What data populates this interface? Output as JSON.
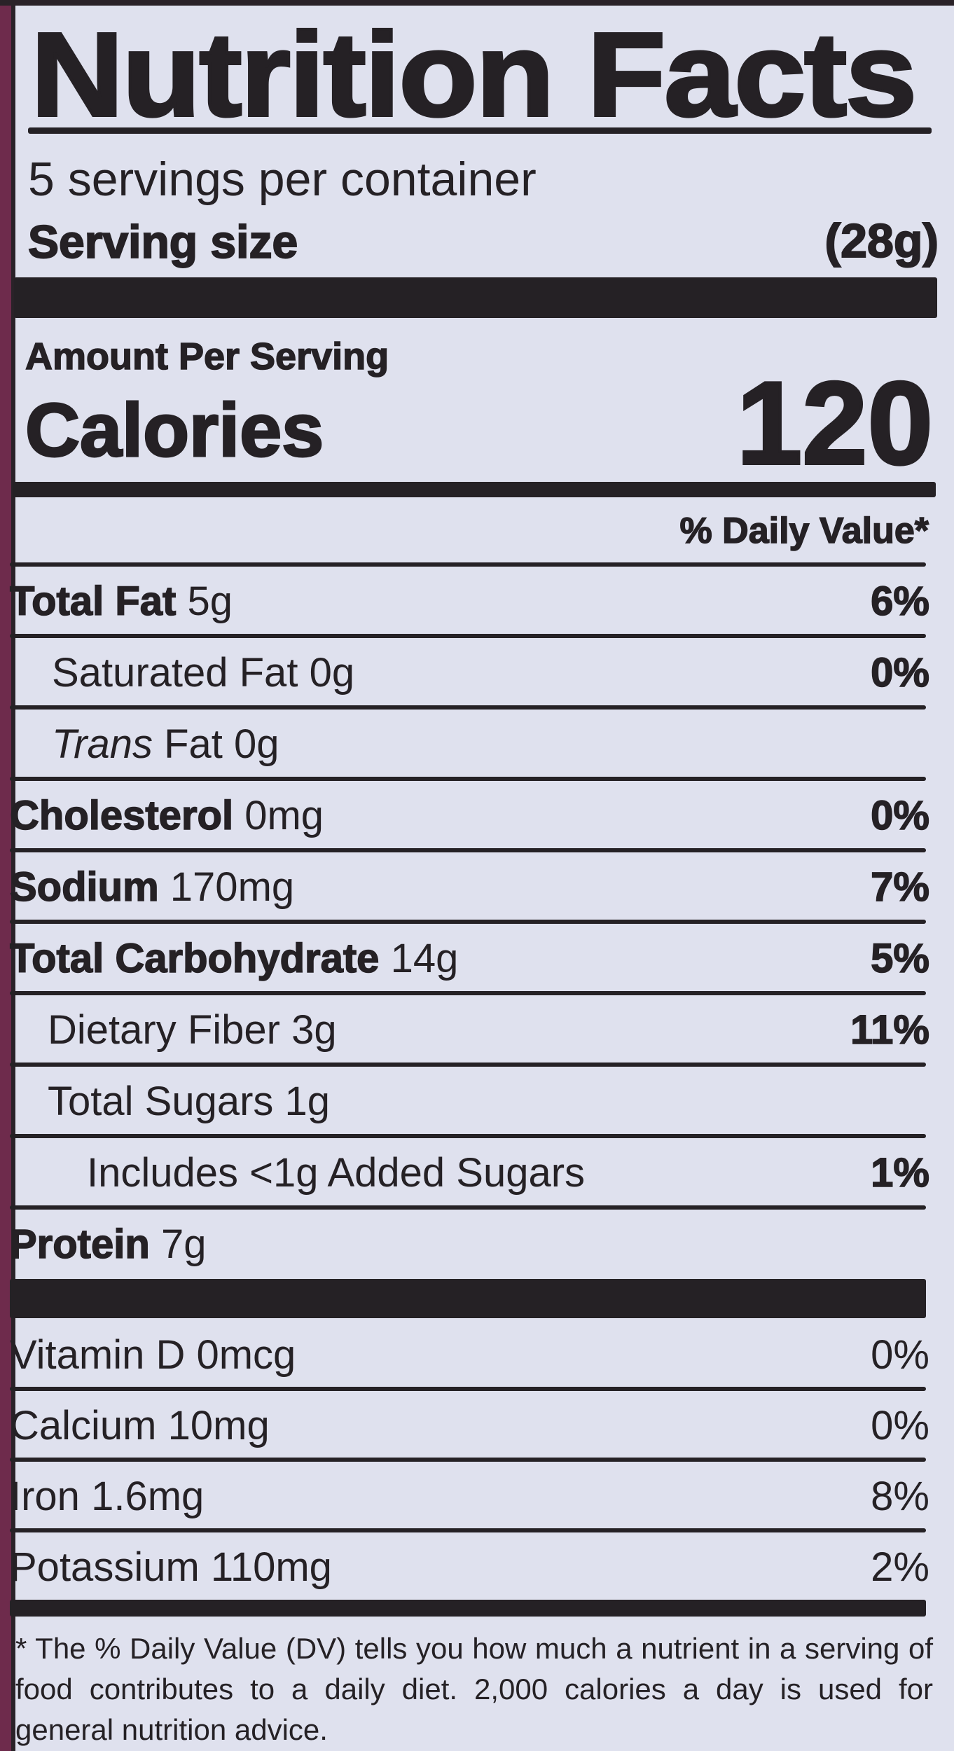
{
  "title": "Nutrition Facts",
  "servings_per_container": "5 servings per container",
  "serving_size_label": "Serving size",
  "serving_size_value": "(28g)",
  "amount_per_serving": "Amount Per Serving",
  "calories_label": "Calories",
  "calories_value": "120",
  "daily_value_header": "% Daily Value*",
  "nutrients": [
    {
      "name": "Total Fat",
      "amount": "5g",
      "dv": "6%"
    },
    {
      "name": "Saturated Fat",
      "amount": "0g",
      "dv": "0%"
    },
    {
      "prefix": "Trans",
      "name": "Fat",
      "amount": "0g",
      "dv": ""
    },
    {
      "name": "Cholesterol",
      "amount": "0mg",
      "dv": "0%"
    },
    {
      "name": "Sodium",
      "amount": "170mg",
      "dv": "7%"
    },
    {
      "name": "Total Carbohydrate",
      "amount": "14g",
      "dv": "5%"
    },
    {
      "name": "Dietary Fiber",
      "amount": "3g",
      "dv": "11%"
    },
    {
      "name": "Total Sugars",
      "amount": "1g",
      "dv": ""
    },
    {
      "name": "Includes <1g Added Sugars",
      "amount": "",
      "dv": "1%"
    },
    {
      "name": "Protein",
      "amount": "7g",
      "dv": ""
    }
  ],
  "vitamins": [
    {
      "name": "Vitamin D",
      "amount": "0mcg",
      "dv": "0%"
    },
    {
      "name": "Calcium",
      "amount": "10mg",
      "dv": "0%"
    },
    {
      "name": "Iron",
      "amount": "1.6mg",
      "dv": "8%"
    },
    {
      "name": "Potassium",
      "amount": "110mg",
      "dv": "2%"
    }
  ],
  "footnote": "* The % Daily Value (DV) tells you how much a nutrient in a serving of food contributes to a daily diet. 2,000 calories a day is used for general nutrition advice.",
  "colors": {
    "background": "#dfe1ee",
    "ink": "#252125",
    "package_edge": "#6e2b4c"
  }
}
